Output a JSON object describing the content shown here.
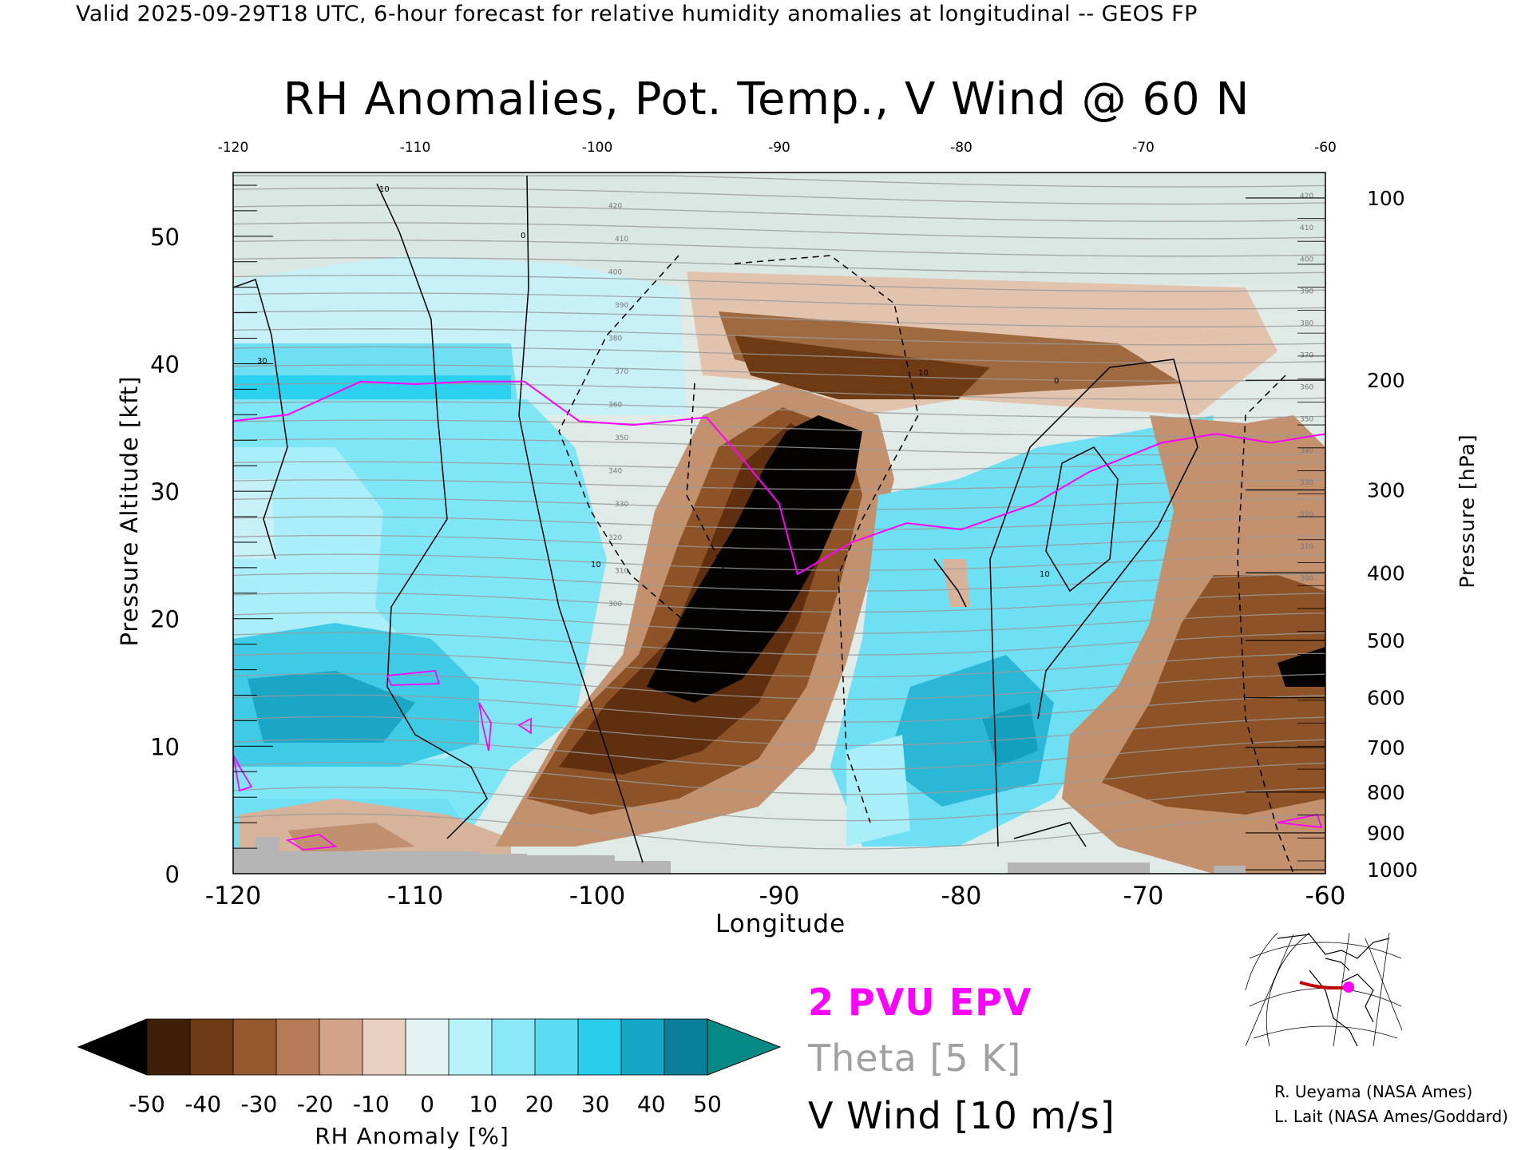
{
  "header": {
    "valid": "Valid 2025-09-29T18 UTC, 6-hour forecast for relative humidity anomalies at longitudinal -- GEOS FP",
    "title": "RH Anomalies, Pot. Temp., V Wind @ 60 N"
  },
  "chart_data": {
    "type": "heatmap",
    "xlabel": "Longitude",
    "ylabel_left": "Pressure Altitude [kft]",
    "ylabel_right": "Pressure [hPa]",
    "xlim": [
      -120,
      -60
    ],
    "ylim": [
      0,
      55
    ],
    "x_ticks": [
      "-120",
      "-110",
      "-100",
      "-90",
      "-80",
      "-70",
      "-60"
    ],
    "x_tick_values": [
      -120,
      -110,
      -100,
      -90,
      -80,
      -70,
      -60
    ],
    "y_ticks_left": [
      "0",
      "10",
      "20",
      "30",
      "40",
      "50"
    ],
    "y_tick_values_left": [
      0,
      10,
      20,
      30,
      40,
      50
    ],
    "y_ticks_right": [
      "100",
      "200",
      "300",
      "400",
      "500",
      "600",
      "700",
      "800",
      "900",
      "1000"
    ],
    "y_tick_values_right_kft": [
      53,
      38.7,
      30.1,
      23.6,
      18.3,
      13.8,
      9.9,
      6.4,
      3.2,
      0.3
    ],
    "colorbar": {
      "label": "RH Anomaly [%]",
      "ticks": [
        "-50",
        "-40",
        "-30",
        "-20",
        "-10",
        "0",
        "10",
        "20",
        "30",
        "40",
        "50"
      ],
      "colors": [
        "#000000",
        "#3e1f08",
        "#6d3a14",
        "#94582e",
        "#b57a56",
        "#d2a389",
        "#e8cfc0",
        "#e2f3f1",
        "#b8f3f9",
        "#8be8f7",
        "#5cdbf1",
        "#28ceec",
        "#12a8c6",
        "#0a7f99",
        "#078a85"
      ]
    },
    "theta_contour_labels": [
      "300",
      "310",
      "320",
      "330",
      "340",
      "350",
      "360",
      "370",
      "380",
      "390",
      "400",
      "410",
      "420"
    ],
    "wind_contour_labels": [
      "-10",
      "0",
      "10"
    ],
    "epv_2pvu_kft": [
      [
        -120,
        35.5
      ],
      [
        -117,
        36
      ],
      [
        -113,
        38.6
      ],
      [
        -110,
        38.4
      ],
      [
        -107,
        38.6
      ],
      [
        -104,
        38.6
      ],
      [
        -101,
        35.5
      ],
      [
        -98,
        35.2
      ],
      [
        -94,
        35.8
      ],
      [
        -92,
        32.5
      ],
      [
        -90,
        29
      ],
      [
        -89,
        23.5
      ],
      [
        -86,
        26
      ],
      [
        -83,
        27.5
      ],
      [
        -80,
        27
      ],
      [
        -76,
        29
      ],
      [
        -73,
        31.5
      ],
      [
        -69,
        33.8
      ],
      [
        -66,
        34.5
      ],
      [
        -63,
        33.8
      ],
      [
        -60,
        34.5
      ]
    ]
  },
  "legend": {
    "epv": "2 PVU EPV",
    "theta": "Theta [5 K]",
    "vwind": "V Wind [10 m/s]",
    "epv_color": "#ff00ff",
    "theta_color": "#a0a0a0"
  },
  "credits": [
    "R. Ueyama (NASA Ames)",
    "L. Lait (NASA Ames/Goddard)"
  ]
}
